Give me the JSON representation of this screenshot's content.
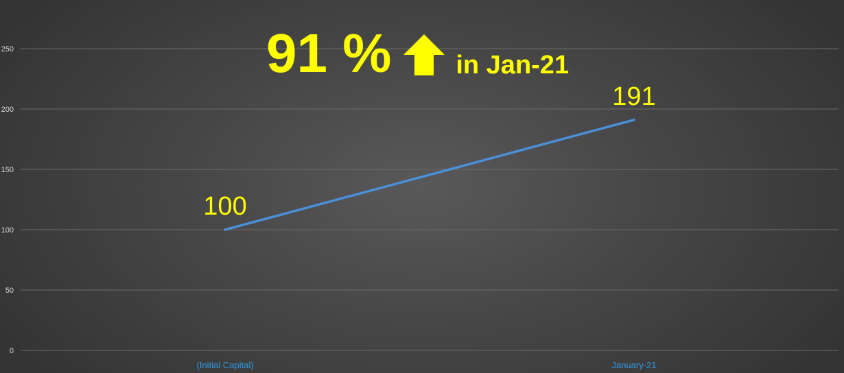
{
  "headline": {
    "value": "91 %",
    "arrow_icon": "up-arrow-icon",
    "suffix": "in Jan-21",
    "color": "#ffff00"
  },
  "chart_data": {
    "type": "line",
    "categories": [
      "(Initial Capital)",
      "January-21"
    ],
    "series": [
      {
        "values": [
          100,
          191
        ],
        "color": "#4a90d9"
      }
    ],
    "data_labels": [
      "100",
      "191"
    ],
    "ylim": [
      0,
      250
    ],
    "yticks": [
      0,
      50,
      100,
      150,
      200,
      250
    ],
    "grid": true,
    "legend": "none",
    "title": "",
    "xlabel": "",
    "ylabel": ""
  }
}
